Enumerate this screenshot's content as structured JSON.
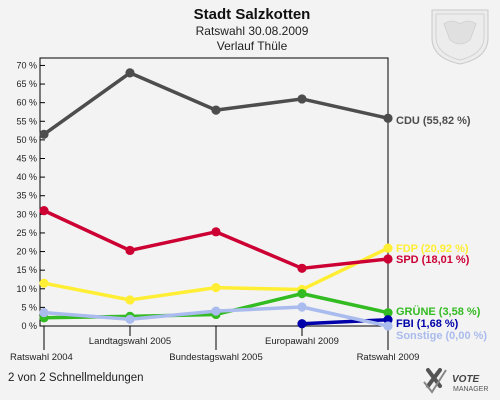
{
  "chart_data": {
    "type": "line",
    "title": "Stadt Salzkotten",
    "subtitle_1": "Ratswahl 30.08.2009",
    "subtitle_2": "Verlauf Thüle",
    "categories": [
      "Ratswahl 2004",
      "Landtagswahl 2005",
      "Bundestagswahl 2005",
      "Europawahl 2009",
      "Ratswahl 2009"
    ],
    "y_ticks": [
      "0 %",
      "5 %",
      "10 %",
      "15 %",
      "20 %",
      "25 %",
      "30 %",
      "35 %",
      "40 %",
      "45 %",
      "50 %",
      "55 %",
      "60 %",
      "65 %",
      "70 %"
    ],
    "ylim": [
      0,
      72
    ],
    "grid": false,
    "series": [
      {
        "name": "CDU",
        "label": "CDU (55,82 %)",
        "color": "#4d4d4d",
        "values": [
          51.5,
          68,
          58,
          61,
          55.82
        ]
      },
      {
        "name": "FDP",
        "label": "FDP (20,92 %)",
        "color": "#ffee33",
        "values": [
          11.5,
          7,
          10.3,
          9.8,
          20.92
        ]
      },
      {
        "name": "SPD",
        "label": "SPD (18,01 %)",
        "color": "#cc0033",
        "values": [
          31,
          20.3,
          25.3,
          15.5,
          18.01
        ]
      },
      {
        "name": "GRÜNE",
        "label": "GRÜNE (3,58 %)",
        "color": "#33bb22",
        "values": [
          2.2,
          2.6,
          3.1,
          8.7,
          3.58
        ]
      },
      {
        "name": "FBI",
        "label": "FBI (1,68 %)",
        "color": "#0000aa",
        "values": [
          null,
          null,
          null,
          0.6,
          1.68
        ]
      },
      {
        "name": "Sonstige",
        "label": "Sonstige (0,00 %)",
        "color": "#aabbee",
        "values": [
          3.6,
          1.8,
          4,
          5.1,
          0.0
        ]
      }
    ]
  },
  "footer": {
    "text": "2 von 2 Schnellmeldungen"
  },
  "logo": {
    "name": "VOTE",
    "sub": "MANAGER"
  },
  "colors": {
    "background": "#f3f3f3",
    "plot_border": "#000000"
  }
}
